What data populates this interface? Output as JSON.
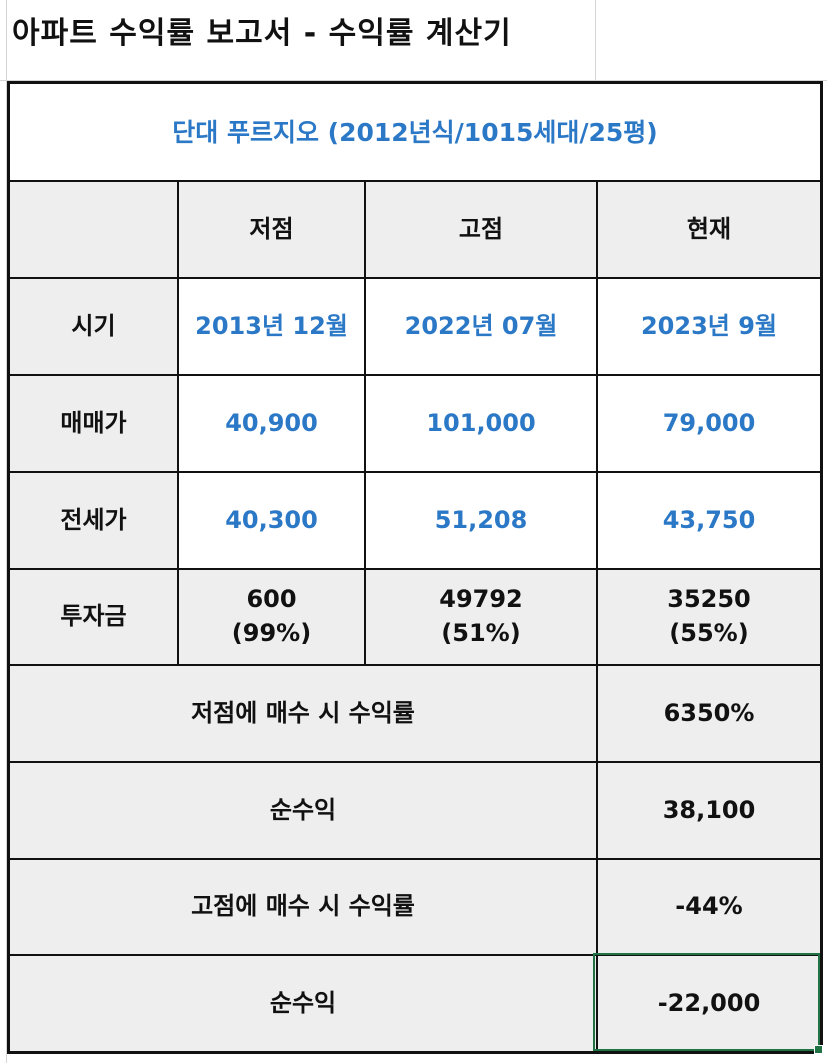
{
  "title": "아파트 수익률 보고서 - 수익률 계산기",
  "subtitle": "단대 푸르지오 (2012년식/1015세대/25평)",
  "columns": [
    "저점",
    "고점",
    "현재"
  ],
  "rows": [
    {
      "label": "시기",
      "values": [
        "2013년 12월",
        "2022년 07월",
        "2023년 9월"
      ]
    },
    {
      "label": "매매가",
      "values": [
        "40,900",
        "101,000",
        "79,000"
      ]
    },
    {
      "label": "전세가",
      "values": [
        "40,300",
        "51,208",
        "43,750"
      ]
    }
  ],
  "investment": {
    "label": "투자금",
    "cells": [
      {
        "amount": "600",
        "ratio": "(99%)"
      },
      {
        "amount": "49792",
        "ratio": "(51%)"
      },
      {
        "amount": "35250",
        "ratio": "(55%)"
      }
    ]
  },
  "summary": [
    {
      "label": "저점에 매수 시 수익률",
      "value": "6350%"
    },
    {
      "label": "순수익",
      "value": "38,100"
    },
    {
      "label": "고점에 매수 시 수익률",
      "value": "-44%"
    },
    {
      "label": "순수익",
      "value": "-22,000"
    }
  ],
  "colors": {
    "accent_blue": "#2a78c6",
    "header_grey": "#eeeeee",
    "selection_green": "#217346"
  }
}
